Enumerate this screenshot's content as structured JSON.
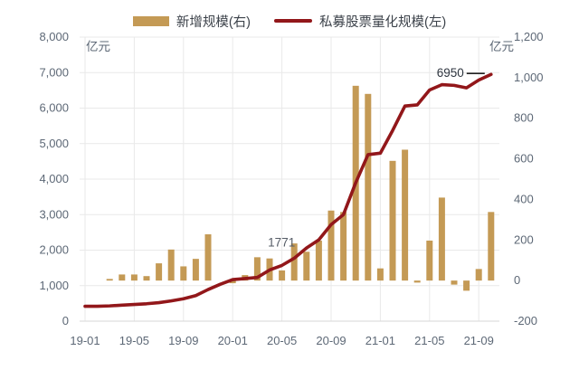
{
  "legend": {
    "bar_label": "新增规模(右)",
    "line_label": "私募股票量化规模(左)"
  },
  "colors": {
    "bar": "#C49A55",
    "line": "#92171A",
    "grid": "#e9e9e9",
    "axis_text": "#5d6876",
    "legend_text": "#3c424a",
    "annotation_mid": "#555c66",
    "annotation_end": "#2f3640",
    "leader_line": "#222222",
    "background": "#ffffff"
  },
  "chart_data": {
    "type": "bar+line combo",
    "months": [
      "19-01",
      "19-02",
      "19-03",
      "19-04",
      "19-05",
      "19-06",
      "19-07",
      "19-08",
      "19-09",
      "19-10",
      "19-11",
      "19-12",
      "20-01",
      "20-02",
      "20-03",
      "20-04",
      "20-05",
      "20-06",
      "20-07",
      "20-08",
      "20-09",
      "20-10",
      "20-11",
      "20-12",
      "21-01",
      "21-02",
      "21-03",
      "21-04",
      "21-05",
      "21-06",
      "21-07",
      "21-08",
      "21-09",
      "21-10"
    ],
    "x_ticks": [
      {
        "index": 0,
        "label": "19-01"
      },
      {
        "index": 4,
        "label": "19-05"
      },
      {
        "index": 8,
        "label": "19-09"
      },
      {
        "index": 12,
        "label": "20-01"
      },
      {
        "index": 16,
        "label": "20-05"
      },
      {
        "index": 20,
        "label": "20-09"
      },
      {
        "index": 24,
        "label": "21-01"
      },
      {
        "index": 28,
        "label": "21-05"
      },
      {
        "index": 32,
        "label": "21-09"
      }
    ],
    "bar_series": {
      "name": "新增规模(右)",
      "axis": "right",
      "unit": "亿元",
      "values": [
        null,
        null,
        8,
        30,
        30,
        22,
        85,
        153,
        70,
        107,
        228,
        null,
        -13,
        27,
        115,
        109,
        50,
        183,
        142,
        197,
        345,
        338,
        960,
        920,
        60,
        590,
        645,
        -10,
        197,
        409,
        -20,
        -50,
        57,
        338
      ]
    },
    "line_series": {
      "name": "私募股票量化规模(左)",
      "axis": "left",
      "unit": "亿元",
      "values": [
        420,
        420,
        430,
        450,
        470,
        490,
        520,
        570,
        630,
        720,
        890,
        1040,
        1170,
        1200,
        1230,
        1440,
        1570,
        1771,
        2060,
        2290,
        2720,
        3000,
        3900,
        4690,
        4730,
        5370,
        6060,
        6090,
        6510,
        6660,
        6640,
        6570,
        6790,
        6950
      ]
    },
    "left_axis": {
      "title": "亿元",
      "min": 0,
      "max": 8000,
      "step": 1000,
      "tick_labels": [
        "0",
        "1,000",
        "2,000",
        "3,000",
        "4,000",
        "5,000",
        "6,000",
        "7,000",
        "8,000"
      ]
    },
    "right_axis": {
      "title": "亿元",
      "min": -200,
      "max": 1200,
      "step": 200,
      "tick_labels": [
        "-200",
        "0",
        "200",
        "400",
        "600",
        "800",
        "1,000",
        "1,200"
      ]
    },
    "annotations": [
      {
        "text": "1771",
        "month_index": 17,
        "leader": false
      },
      {
        "text": "6950",
        "month_index": 33,
        "leader": true
      }
    ],
    "grid": true,
    "legend_position": "top-center"
  }
}
